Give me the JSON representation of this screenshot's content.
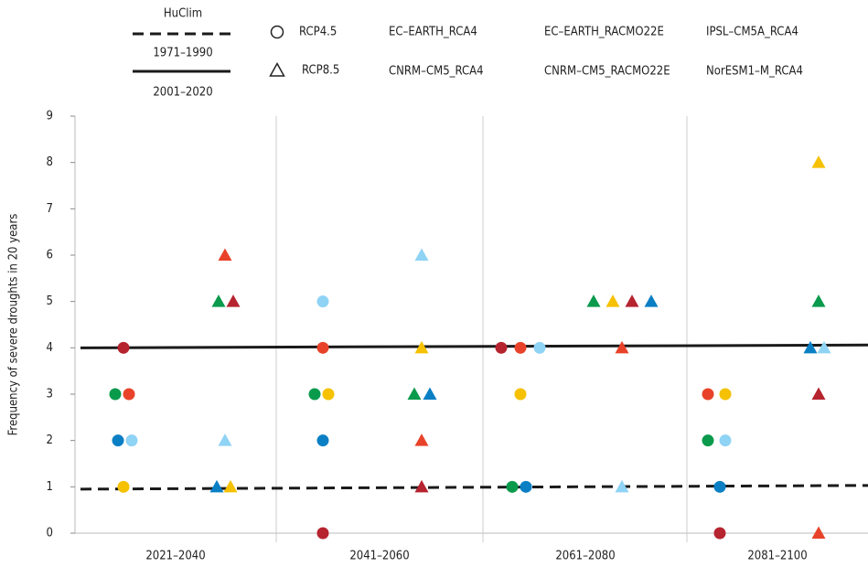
{
  "chart_data": {
    "type": "scatter",
    "y_label": "Frequency of severe droughts in 20 years",
    "categories": [
      "2021–2040",
      "2041–2060",
      "2061–2080",
      "2081–2100"
    ],
    "ylim": [
      0,
      9
    ],
    "yticks": [
      0,
      1,
      2,
      3,
      4,
      5,
      6,
      7,
      8,
      9
    ],
    "grid": "category-separators",
    "scenarios": [
      {
        "name": "RCP4.5",
        "marker": "circle"
      },
      {
        "name": "RCP8.5",
        "marker": "triangle"
      }
    ],
    "models": [
      {
        "name": "EC–EARTH_RCA4",
        "color": "#0a7fc4",
        "values": [
          [
            2,
            2,
            1,
            1
          ],
          [
            1,
            3,
            5,
            4
          ]
        ]
      },
      {
        "name": "EC–EARTH_RACMO22E",
        "color": "#8fd3f5",
        "values": [
          [
            2,
            5,
            4,
            2
          ],
          [
            2,
            6,
            1,
            4
          ]
        ]
      },
      {
        "name": "IPSL–CM5A_RCA4",
        "color": "#f5c100",
        "values": [
          [
            1,
            3,
            3,
            3
          ],
          [
            1,
            4,
            5,
            8
          ]
        ]
      },
      {
        "name": "CNRM–CM5_RCA4",
        "color": "#e8432a",
        "values": [
          [
            3,
            4,
            4,
            3
          ],
          [
            6,
            2,
            4,
            0
          ]
        ]
      },
      {
        "name": "CNRM–CM5_RACMO22E",
        "color": "#b5242f",
        "values": [
          [
            4,
            0,
            4,
            0
          ],
          [
            5,
            1,
            5,
            3
          ]
        ]
      },
      {
        "name": "NorESM1–M_RCA4",
        "color": "#0a9a4c",
        "values": [
          [
            3,
            3,
            1,
            2
          ],
          [
            5,
            3,
            5,
            5
          ]
        ]
      }
    ],
    "reference_lines": {
      "title": "HuClim",
      "color": "#1a1a1a",
      "lines": [
        {
          "name": "1971–1990",
          "style": "dashed",
          "values": [
            0.95,
            1.03
          ]
        },
        {
          "name": "2001–2020",
          "style": "solid",
          "values": [
            4.0,
            4.06
          ]
        }
      ]
    }
  }
}
